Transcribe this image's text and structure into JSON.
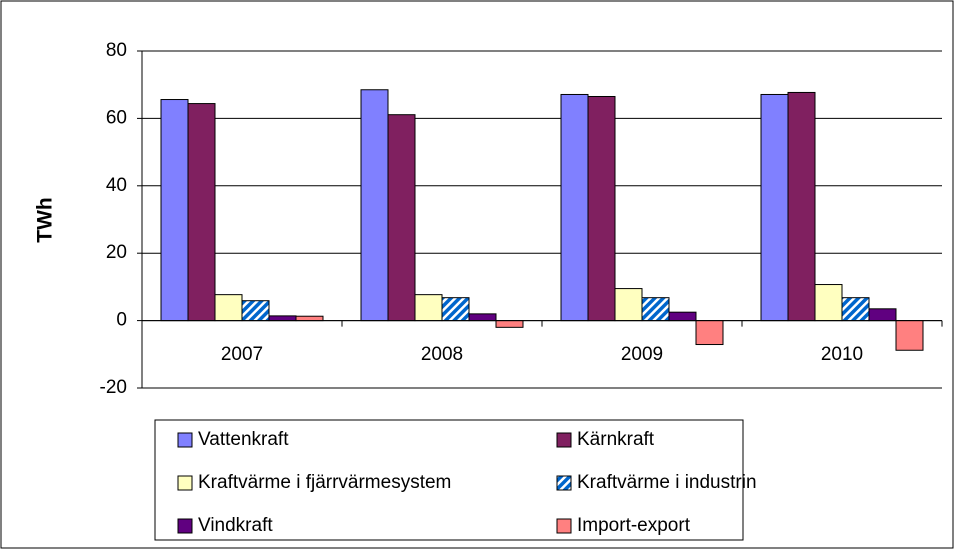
{
  "chart_data": {
    "type": "bar",
    "y_label": "TWh",
    "categories": [
      "2007",
      "2008",
      "2009",
      "2010"
    ],
    "series": [
      {
        "name": "Vattenkraft",
        "color": "#8080ff",
        "values": [
          65.6,
          68.5,
          67.1,
          67.1
        ]
      },
      {
        "name": "Kärnkraft",
        "color": "#802060",
        "values": [
          64.4,
          61.1,
          66.5,
          67.7
        ]
      },
      {
        "name": "Kraftvärme i fjärrvärmesystem",
        "color": "#ffffc0",
        "values": [
          7.7,
          7.7,
          9.5,
          10.7
        ]
      },
      {
        "name": "Kraftvärme i industrin",
        "color": "#0066cc",
        "hatch": true,
        "values": [
          5.9,
          6.8,
          6.8,
          6.8
        ]
      },
      {
        "name": "Vindkraft",
        "color": "#600080",
        "values": [
          1.4,
          2.0,
          2.5,
          3.5
        ]
      },
      {
        "name": "Import-export",
        "color": "#ff8080",
        "values": [
          1.3,
          -2.0,
          -7.1,
          -8.8
        ]
      }
    ],
    "ylim": [
      -20,
      80
    ],
    "yticks": [
      -20,
      0,
      20,
      40,
      60,
      80
    ],
    "grid": true
  }
}
